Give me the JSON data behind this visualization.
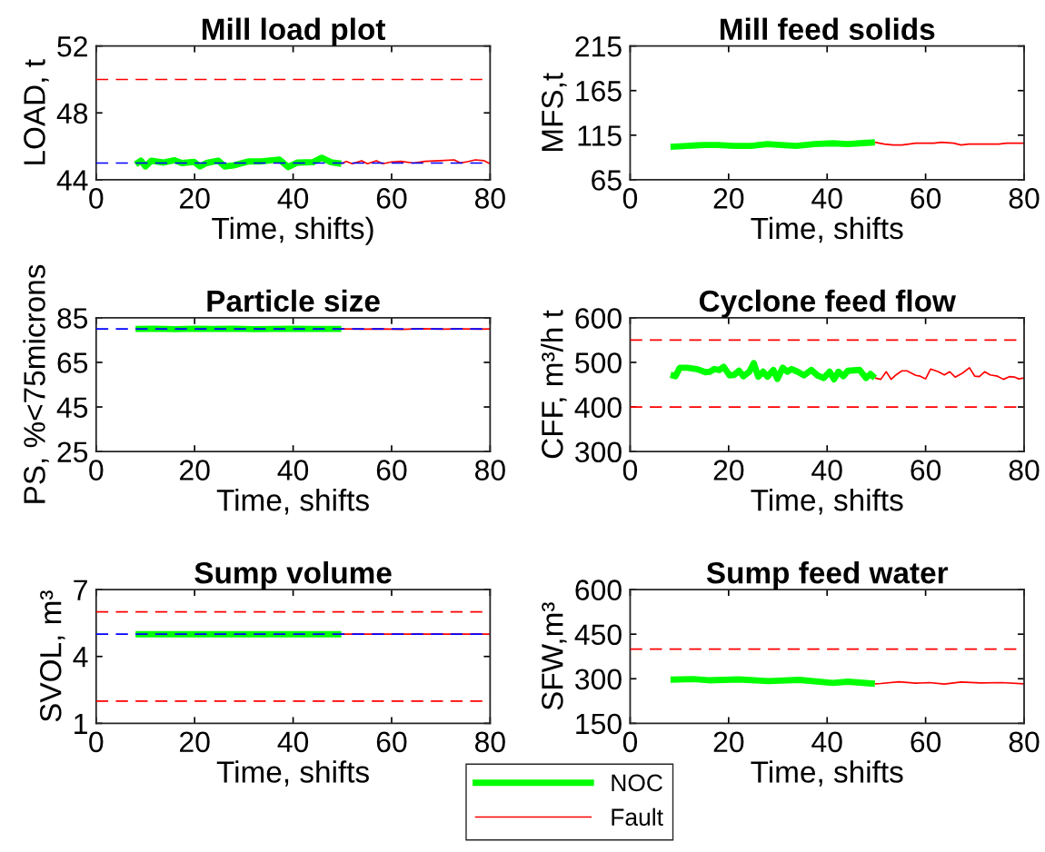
{
  "chart_data": [
    {
      "type": "line",
      "title": "Mill load plot",
      "xlabel": "Time, shifts)",
      "ylabel": "LOAD, t",
      "xlim": [
        0,
        80
      ],
      "xticks": [
        0,
        20,
        40,
        60,
        80
      ],
      "ylim": [
        44,
        52
      ],
      "yticks": [
        44,
        48,
        52
      ],
      "line_style": "solid",
      "grid": false,
      "legend": "bottom",
      "series": [
        {
          "name": "NOC",
          "color": "#00ff00",
          "x": [
            8.0,
            9.1,
            10,
            11.2,
            13.7,
            15.9,
            17.4,
            19.9,
            21.1,
            22.4,
            24.8,
            26.1,
            27.9,
            31,
            33.5,
            37.2,
            39,
            40.9,
            44,
            45.8,
            47.7,
            49.8
          ],
          "values": [
            44.92,
            45.14,
            44.8,
            45.14,
            45.03,
            45.17,
            45.0,
            45.07,
            44.8,
            45.0,
            45.14,
            44.8,
            44.86,
            45.1,
            45.1,
            45.21,
            44.76,
            45.03,
            45.05,
            45.32,
            45.05,
            44.96
          ]
        },
        {
          "name": "Fault",
          "color": "#ff0000",
          "x": [
            49.8,
            50.8,
            52,
            53.9,
            55.1,
            56.9,
            58.2,
            60,
            61.9,
            64.4,
            66.8,
            69.9,
            72.7,
            73.9,
            75.4,
            77,
            78.8,
            80
          ],
          "values": [
            44.96,
            45.1,
            44.96,
            45.14,
            44.96,
            45.14,
            44.96,
            45.07,
            45.1,
            45.0,
            45.1,
            45.14,
            45.19,
            45.01,
            45.08,
            45.19,
            45.14,
            44.96
          ]
        }
      ],
      "ref_lines": [
        {
          "axis": "y",
          "value": 50,
          "color": "#ff0000",
          "line_style": "dashed"
        },
        {
          "axis": "y",
          "value": 45,
          "color": "#0000ff",
          "line_style": "dashed"
        }
      ]
    },
    {
      "type": "line",
      "title": "Mill feed solids",
      "xlabel": "Time, shifts",
      "ylabel": "MFS,t",
      "xlim": [
        0,
        80
      ],
      "xticks": [
        0,
        20,
        40,
        60,
        80
      ],
      "ylim": [
        65,
        215
      ],
      "yticks": [
        65,
        115,
        165,
        215
      ],
      "line_style": "solid",
      "grid": false,
      "series": [
        {
          "color": "#00ff00",
          "x": [
            8.2,
            11.6,
            15,
            17.8,
            21.1,
            24.5,
            27.9,
            30.7,
            33.7,
            37.4,
            41.1,
            44.2,
            46.6,
            49.7
          ],
          "values": [
            102,
            103,
            104,
            104,
            103,
            103,
            105,
            104,
            103,
            105,
            106,
            105,
            106,
            107
          ]
        },
        {
          "color": "#ff0000",
          "x": [
            49.7,
            51.6,
            53.4,
            55.2,
            58,
            61.7,
            63.2,
            65.7,
            67.2,
            68.8,
            71.2,
            74.9,
            76.4,
            80
          ],
          "values": [
            107,
            105,
            104,
            104,
            106,
            106,
            107,
            106,
            104,
            105,
            105,
            105,
            106,
            106
          ]
        }
      ]
    },
    {
      "type": "line",
      "title": "Particle size",
      "xlabel": "Time, shifts",
      "ylabel": "PS, %<75microns",
      "xlim": [
        0,
        80
      ],
      "xticks": [
        0,
        20,
        40,
        60,
        80
      ],
      "ylim": [
        25,
        85
      ],
      "yticks": [
        25,
        45,
        65,
        85
      ],
      "line_style": "solid",
      "grid": false,
      "series": [
        {
          "color": "#00ff00",
          "x": [
            8.0,
            12,
            16,
            20,
            24,
            28,
            32,
            36,
            40,
            44,
            49.8
          ],
          "values": [
            80.0,
            80.1,
            79.9,
            80.1,
            80.0,
            80.1,
            79.9,
            80.0,
            80.1,
            80.0,
            80.0
          ]
        },
        {
          "color": "#ff0000",
          "x": [
            49.8,
            54,
            58,
            62,
            66,
            70,
            74,
            78,
            80
          ],
          "values": [
            80.0,
            79.9,
            80.0,
            79.8,
            80.1,
            79.9,
            80.0,
            79.9,
            80.0
          ]
        }
      ],
      "ref_lines": [
        {
          "axis": "y",
          "value": 80,
          "color": "#0000ff",
          "line_style": "dashed"
        }
      ]
    },
    {
      "type": "line",
      "title": "Cyclone feed flow",
      "xlabel": "Time, shifts",
      "ylabel": "CFF, m³/h t",
      "xlim": [
        0,
        80
      ],
      "xticks": [
        0,
        20,
        40,
        60,
        80
      ],
      "ylim": [
        300,
        600
      ],
      "yticks": [
        300,
        400,
        500,
        600
      ],
      "line_style": "solid",
      "grid": false,
      "series": [
        {
          "color": "#00ff00",
          "x": [
            8.2,
            9.2,
            10.1,
            11.6,
            13.5,
            15.3,
            16.2,
            17.1,
            18.1,
            19,
            20.2,
            21.1,
            22.1,
            23,
            24.2,
            25.1,
            26,
            27,
            27.9,
            29.1,
            29.9,
            31,
            31.9,
            32.8,
            34,
            35.3,
            36.8,
            38,
            39.3,
            40.5,
            41.4,
            42.3,
            43.3,
            44.2,
            46.6,
            47.9,
            48.8,
            49.7
          ],
          "values": [
            472,
            469,
            488,
            488,
            485,
            478,
            479,
            485,
            483,
            490,
            471,
            472,
            481,
            469,
            479,
            498,
            468,
            479,
            468,
            483,
            463,
            488,
            479,
            485,
            479,
            471,
            483,
            471,
            465,
            479,
            462,
            479,
            469,
            481,
            483,
            465,
            474,
            465
          ]
        },
        {
          "color": "#ff0000",
          "x": [
            49.7,
            50.9,
            52,
            53,
            54,
            55.2,
            56.2,
            58,
            58.9,
            60,
            61,
            62.6,
            63.8,
            64.9,
            66,
            67.5,
            68.9,
            70,
            70.9,
            72,
            73.1,
            74.6,
            75.8,
            77,
            78.1,
            78.9,
            80
          ],
          "values": [
            465,
            462,
            479,
            462,
            472,
            481,
            481,
            471,
            469,
            463,
            485,
            479,
            472,
            479,
            467,
            476,
            488,
            469,
            468,
            479,
            472,
            469,
            462,
            468,
            467,
            463,
            465
          ]
        }
      ],
      "ref_lines": [
        {
          "axis": "y",
          "value": 550,
          "color": "#ff0000",
          "line_style": "dashed"
        },
        {
          "axis": "y",
          "value": 400,
          "color": "#ff0000",
          "line_style": "dashed"
        }
      ]
    },
    {
      "type": "line",
      "title": "Sump volume",
      "xlabel": "Time, shifts",
      "ylabel": "SVOL, m³",
      "xlim": [
        0,
        80
      ],
      "xticks": [
        0,
        20,
        40,
        60,
        80
      ],
      "ylim": [
        1,
        7
      ],
      "yticks": [
        1,
        4,
        7
      ],
      "line_style": "solid",
      "grid": false,
      "series": [
        {
          "color": "#00ff00",
          "x": [
            8.0,
            12,
            16,
            20,
            24,
            28,
            32,
            36,
            40,
            44,
            49.8
          ],
          "values": [
            5.0,
            5.0,
            5.0,
            5.0,
            5.0,
            5.0,
            5.0,
            5.0,
            5.0,
            5.0,
            5.0
          ]
        },
        {
          "color": "#ff0000",
          "x": [
            49.8,
            54,
            58,
            62,
            66,
            70,
            74,
            78,
            80
          ],
          "values": [
            5.0,
            5.0,
            5.0,
            5.0,
            5.0,
            5.0,
            5.0,
            5.0,
            5.0
          ]
        }
      ],
      "ref_lines": [
        {
          "axis": "y",
          "value": 6,
          "color": "#ff0000",
          "line_style": "dashed"
        },
        {
          "axis": "y",
          "value": 2,
          "color": "#ff0000",
          "line_style": "dashed"
        },
        {
          "axis": "y",
          "value": 5,
          "color": "#0000ff",
          "line_style": "dashed"
        }
      ]
    },
    {
      "type": "line",
      "title": "Sump feed water",
      "xlabel": "Time, shifts",
      "ylabel": "SFW,m³",
      "xlim": [
        0,
        80
      ],
      "xticks": [
        0,
        20,
        40,
        60,
        80
      ],
      "ylim": [
        150,
        600
      ],
      "yticks": [
        150,
        300,
        450,
        600
      ],
      "line_style": "solid",
      "grid": false,
      "series": [
        {
          "color": "#00ff00",
          "x": [
            8.2,
            12.8,
            15.9,
            22.1,
            28.1,
            34.3,
            41.1,
            44.2,
            49.7
          ],
          "values": [
            297,
            299,
            295,
            298,
            292,
            296,
            286,
            290,
            283
          ]
        },
        {
          "color": "#ff0000",
          "x": [
            49.7,
            50.9,
            54.6,
            58,
            60.8,
            63.8,
            67.2,
            71.2,
            75.5,
            80
          ],
          "values": [
            283,
            284,
            290,
            285,
            287,
            282,
            289,
            286,
            287,
            283
          ]
        }
      ],
      "ref_lines": [
        {
          "axis": "y",
          "value": 400,
          "color": "#ff0000",
          "line_style": "dashed"
        }
      ]
    }
  ]
}
